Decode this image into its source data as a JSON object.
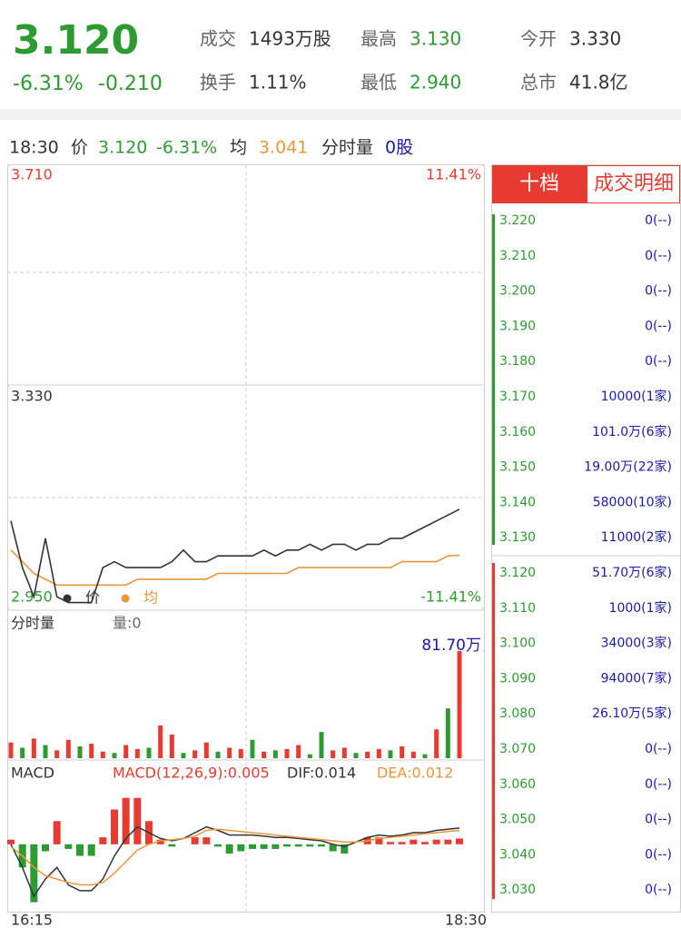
{
  "header": {
    "price": "3.120",
    "change_pct": "-6.31%",
    "change": "-0.210",
    "stats": [
      {
        "label": "成交",
        "value": "1493万股"
      },
      {
        "label": "最高",
        "value": "3.130"
      },
      {
        "label": "今开",
        "value": "3.330"
      },
      {
        "label": "换手",
        "value": "1.11%"
      },
      {
        "label": "最低",
        "value": "2.940"
      },
      {
        "label": "总市",
        "value": "41.8亿"
      }
    ]
  },
  "info_bar": {
    "time": "18:30",
    "price_label": "价",
    "price": "3.120",
    "change_pct": "-6.31%",
    "avg_label": "均",
    "avg": "3.041",
    "volume_label": "分时量",
    "volume": "0股"
  },
  "price_chart": {
    "type": "line",
    "ylim": [
      2.95,
      3.71
    ],
    "yticks": [
      {
        "value": 3.71,
        "label": "3.710"
      },
      {
        "value": 3.33,
        "label": "3.330"
      },
      {
        "value": 2.95,
        "label": "2.950"
      }
    ],
    "y2lim": [
      -11.41,
      11.41
    ],
    "y2ticks": [
      {
        "value": 11.41,
        "label": "11.41%"
      },
      {
        "value": -11.41,
        "label": "-11.41%"
      }
    ],
    "x_labels": [
      "16:15",
      "18:30"
    ],
    "series": [
      {
        "name": "价",
        "color": "#333333",
        "values": [
          3.1,
          3.02,
          2.97,
          3.07,
          2.97,
          2.96,
          2.96,
          2.96,
          3.02,
          3.03,
          3.02,
          3.02,
          3.02,
          3.02,
          3.03,
          3.05,
          3.03,
          3.03,
          3.04,
          3.04,
          3.04,
          3.04,
          3.05,
          3.04,
          3.05,
          3.05,
          3.06,
          3.05,
          3.06,
          3.06,
          3.05,
          3.06,
          3.06,
          3.07,
          3.07,
          3.08,
          3.09,
          3.1,
          3.11,
          3.12
        ]
      },
      {
        "name": "均",
        "color": "#e8983a",
        "values": [
          3.05,
          3.03,
          3.01,
          3.0,
          2.99,
          2.99,
          2.99,
          2.99,
          2.99,
          2.99,
          2.99,
          3.0,
          3.0,
          3.0,
          3.0,
          3.0,
          3.0,
          3.0,
          3.01,
          3.01,
          3.01,
          3.01,
          3.01,
          3.01,
          3.01,
          3.02,
          3.02,
          3.02,
          3.02,
          3.02,
          3.02,
          3.02,
          3.02,
          3.02,
          3.03,
          3.03,
          3.03,
          3.03,
          3.04,
          3.041
        ]
      }
    ]
  },
  "volume_chart": {
    "type": "bar",
    "title": "分时量",
    "subtitle": "量:0",
    "ylim": [
      0,
      81.7
    ],
    "yticks": [
      {
        "value": 81.7,
        "label": "81.70万"
      }
    ],
    "values": [
      12,
      8,
      15,
      10,
      6,
      14,
      9,
      11,
      5,
      4,
      10,
      7,
      8,
      25,
      18,
      4,
      6,
      12,
      5,
      8,
      7,
      14,
      5,
      6,
      7,
      10,
      3,
      20,
      6,
      8,
      4,
      5,
      7,
      6,
      9,
      5,
      3,
      22,
      38,
      81.7
    ],
    "colors": [
      "#e83a30",
      "#2e9b32",
      "#e83a30",
      "#2e9b32",
      "#e83a30",
      "#e83a30",
      "#2e9b32",
      "#e83a30",
      "#e83a30",
      "#2e9b32",
      "#e83a30",
      "#e83a30",
      "#2e9b32",
      "#e83a30",
      "#e83a30",
      "#2e9b32",
      "#e83a30",
      "#e83a30",
      "#2e9b32",
      "#e83a30",
      "#e83a30",
      "#2e9b32",
      "#e83a30",
      "#2e9b32",
      "#e83a30",
      "#e83a30",
      "#2e9b32",
      "#2e9b32",
      "#e83a30",
      "#e83a30",
      "#2e9b32",
      "#e83a30",
      "#e83a30",
      "#2e9b32",
      "#e83a30",
      "#e83a30",
      "#2e9b32",
      "#e83a30",
      "#2e9b32",
      "#e83a30"
    ]
  },
  "macd_chart": {
    "type": "macd",
    "title": "MACD",
    "ylim": [
      -0.055,
      0.05
    ],
    "down_color": "#2e9b32",
    "series": [
      {
        "name": "MACD(12,26,9):0.005",
        "color": "#e83a30",
        "values": [
          0.004,
          -0.02,
          -0.05,
          -0.006,
          0.02,
          -0.004,
          -0.01,
          -0.01,
          0.006,
          0.03,
          0.04,
          0.04,
          0.02,
          0.004,
          -0.002,
          0,
          0.006,
          0.006,
          -0.002,
          -0.008,
          -0.006,
          -0.004,
          -0.004,
          -0.004,
          -0.002,
          -0.002,
          -0.002,
          -0.002,
          -0.006,
          -0.008,
          0,
          0.006,
          0.006,
          0.002,
          0.002,
          0.004,
          0.002,
          0.004,
          0.004,
          0.005
        ]
      },
      {
        "name": "DIF:0.014",
        "color": "#333333",
        "values": [
          0.0,
          -0.02,
          -0.045,
          -0.03,
          -0.02,
          -0.035,
          -0.04,
          -0.04,
          -0.03,
          -0.01,
          0.005,
          0.015,
          0.01,
          0.005,
          0.003,
          0.005,
          0.01,
          0.015,
          0.012,
          0.008,
          0.008,
          0.008,
          0.007,
          0.006,
          0.006,
          0.005,
          0.004,
          0.003,
          0.0,
          -0.002,
          0.002,
          0.006,
          0.008,
          0.007,
          0.008,
          0.01,
          0.01,
          0.012,
          0.013,
          0.014
        ]
      },
      {
        "name": "DEA:0.012",
        "color": "#e8983a",
        "values": [
          -0.002,
          -0.01,
          -0.02,
          -0.027,
          -0.03,
          -0.033,
          -0.035,
          -0.035,
          -0.033,
          -0.025,
          -0.015,
          -0.005,
          0.0,
          0.003,
          0.004,
          0.005,
          0.007,
          0.012,
          0.013,
          0.012,
          0.011,
          0.01,
          0.009,
          0.008,
          0.007,
          0.006,
          0.005,
          0.004,
          0.003,
          0.002,
          0.002,
          0.003,
          0.005,
          0.006,
          0.007,
          0.008,
          0.009,
          0.01,
          0.011,
          0.012
        ]
      }
    ]
  },
  "order_book": {
    "tabs": [
      "十档",
      "成交明细"
    ],
    "asks": [
      {
        "price": "3.220",
        "volume": "0(--)"
      },
      {
        "price": "3.210",
        "volume": "0(--)"
      },
      {
        "price": "3.200",
        "volume": "0(--)"
      },
      {
        "price": "3.190",
        "volume": "0(--)"
      },
      {
        "price": "3.180",
        "volume": "0(--)"
      },
      {
        "price": "3.170",
        "volume": "10000(1家)"
      },
      {
        "price": "3.160",
        "volume": "101.0万(6家)"
      },
      {
        "price": "3.150",
        "volume": "19.00万(22家)"
      },
      {
        "price": "3.140",
        "volume": "58000(10家)"
      },
      {
        "price": "3.130",
        "volume": "11000(2家)"
      }
    ],
    "bids": [
      {
        "price": "3.120",
        "volume": "51.70万(6家)"
      },
      {
        "price": "3.110",
        "volume": "1000(1家)"
      },
      {
        "price": "3.100",
        "volume": "34000(3家)"
      },
      {
        "price": "3.090",
        "volume": "94000(7家)"
      },
      {
        "price": "3.080",
        "volume": "26.10万(5家)"
      },
      {
        "price": "3.070",
        "volume": "0(--)"
      },
      {
        "price": "3.060",
        "volume": "0(--)"
      },
      {
        "price": "3.050",
        "volume": "0(--)"
      },
      {
        "price": "3.040",
        "volume": "0(--)"
      },
      {
        "price": "3.030",
        "volume": "0(--)"
      }
    ]
  }
}
